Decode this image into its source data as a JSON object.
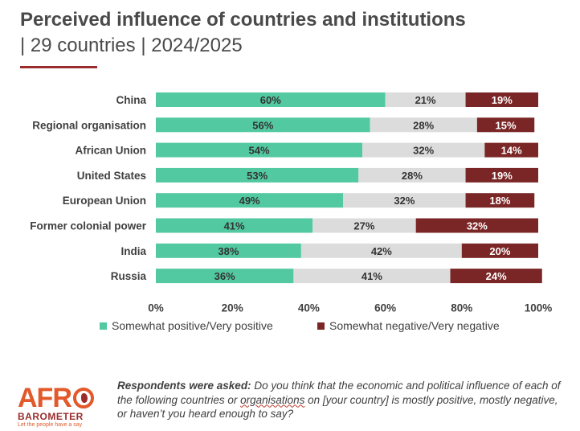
{
  "header": {
    "title": "Perceived influence of countries and institutions",
    "subtitle": "| 29 countries | 2024/2025"
  },
  "chart_data": {
    "type": "bar",
    "orientation": "horizontal",
    "stacked": true,
    "categories": [
      "China",
      "Regional organisation",
      "African Union",
      "United States",
      "European Union",
      "Former colonial power",
      "India",
      "Russia"
    ],
    "series": [
      {
        "name": "Somewhat positive/Very positive",
        "values": [
          60,
          56,
          54,
          53,
          49,
          41,
          38,
          36
        ],
        "color": "#52c9a0",
        "labels": [
          "60%",
          "56%",
          "54%",
          "53%",
          "49%",
          "41%",
          "38%",
          "36%"
        ]
      },
      {
        "name": "",
        "values": [
          21,
          28,
          32,
          28,
          32,
          27,
          42,
          41
        ],
        "color": "#dcdcdc",
        "labels": [
          "21%",
          "28%",
          "32%",
          "28%",
          "32%",
          "27%",
          "42%",
          "41%"
        ]
      },
      {
        "name": "Somewhat negative/Very negative",
        "values": [
          19,
          15,
          14,
          19,
          18,
          32,
          20,
          24
        ],
        "color": "#7b2626",
        "labels": [
          "19%",
          "15%",
          "14%",
          "19%",
          "18%",
          "32%",
          "20%",
          "24%"
        ]
      }
    ],
    "xlim": [
      0,
      100
    ],
    "xticks": [
      "0%",
      "20%",
      "40%",
      "60%",
      "80%",
      "100%"
    ],
    "legend_position": "bottom",
    "grid": false
  },
  "legend": {
    "positive_label": "Somewhat positive/Very positive",
    "negative_label": "Somewhat negative/Very negative"
  },
  "note": {
    "lead": "Respondents were asked:",
    "text_before": " Do you think that the economic and political influence of each of the following countries or ",
    "underlined": "organisations",
    "text_after": " on [your country] is mostly positive, mostly negative, or haven’t you heard enough to say?"
  },
  "logo": {
    "word1": "AFR",
    "word2": "BAROMETER",
    "tagline": "Let the people have a say"
  }
}
